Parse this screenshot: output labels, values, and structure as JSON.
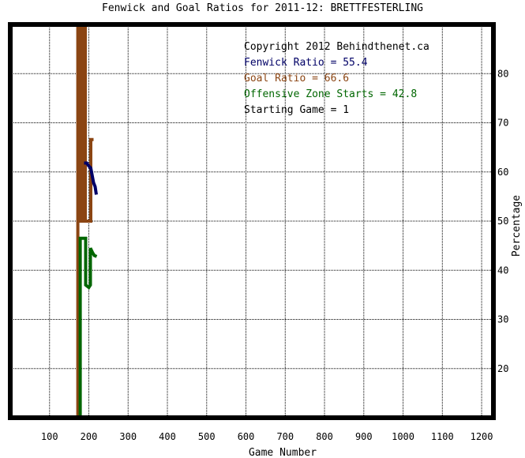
{
  "chart_data": {
    "type": "line",
    "title": "Fenwick and Goal Ratios for 2011-12: BRETTFESTERLING",
    "xlabel": "Game Number",
    "ylabel": "Percentage",
    "xlim": [
      0,
      1230
    ],
    "ylim": [
      10,
      90
    ],
    "x_ticks": [
      100,
      200,
      300,
      400,
      500,
      600,
      700,
      800,
      900,
      1000,
      1100,
      1200
    ],
    "y_ticks": [
      20,
      30,
      40,
      50,
      60,
      70,
      80
    ],
    "grid": true,
    "legend_placement": "top-right",
    "annotations": [
      {
        "text": "Copyright 2012 Behindthenet.ca",
        "color": "#000000"
      },
      {
        "text": "Fenwick Ratio = 55.4",
        "color": "#000066"
      },
      {
        "text": "Goal Ratio = 66.6",
        "color": "#8b4513"
      },
      {
        "text": "Offensive Zone Starts = 42.8",
        "color": "#006600"
      },
      {
        "text": "Starting Game = 1",
        "color": "#000000"
      }
    ],
    "series": [
      {
        "color": "#8b4513",
        "points": [
          [
            172,
            10
          ],
          [
            172,
            90
          ],
          [
            178,
            90
          ],
          [
            178,
            50
          ],
          [
            185,
            50
          ],
          [
            185,
            90
          ],
          [
            191,
            90
          ],
          [
            191,
            50
          ],
          [
            205,
            50
          ],
          [
            205,
            66.6
          ],
          [
            212,
            66.6
          ]
        ]
      },
      {
        "color": "#000066",
        "points": [
          [
            188,
            61.8
          ],
          [
            195,
            61.8
          ],
          [
            200,
            61.2
          ],
          [
            205,
            60.8
          ],
          [
            212,
            57.8
          ],
          [
            216,
            57
          ],
          [
            219,
            55.4
          ]
        ]
      },
      {
        "color": "#006600",
        "points": [
          [
            178,
            10
          ],
          [
            178,
            46.5
          ],
          [
            192,
            46.5
          ],
          [
            192,
            37
          ],
          [
            200,
            36.5
          ],
          [
            204,
            37
          ],
          [
            204,
            44.5
          ],
          [
            210,
            43.5
          ],
          [
            214,
            43
          ],
          [
            220,
            42.8
          ]
        ]
      }
    ]
  }
}
